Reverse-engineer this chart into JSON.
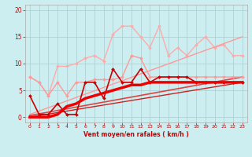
{
  "title": "",
  "xlabel": "Vent moyen/en rafales ( km/h )",
  "ylabel": "",
  "bg_color": "#cceef0",
  "grid_color": "#aacccc",
  "xlim": [
    -0.5,
    23.5
  ],
  "ylim": [
    -1,
    21
  ],
  "yticks": [
    0,
    5,
    10,
    15,
    20
  ],
  "xticks": [
    0,
    1,
    2,
    3,
    4,
    5,
    6,
    7,
    8,
    9,
    10,
    11,
    12,
    13,
    14,
    15,
    16,
    17,
    18,
    19,
    20,
    21,
    22,
    23
  ],
  "lines": [
    {
      "x": [
        0,
        1,
        2,
        3,
        4,
        5,
        6,
        7,
        8,
        9,
        10,
        11,
        12,
        13,
        14,
        15,
        16,
        17,
        18,
        19,
        20,
        21,
        22,
        23
      ],
      "y": [
        7.5,
        6.5,
        4.0,
        9.5,
        9.5,
        10.0,
        11.0,
        11.5,
        10.5,
        15.5,
        17.0,
        17.0,
        15.0,
        13.0,
        17.0,
        11.5,
        13.0,
        11.5,
        13.5,
        15.0,
        13.0,
        13.5,
        11.5,
        11.5
      ],
      "color": "#ffaaaa",
      "lw": 1.0,
      "marker": "D",
      "ms": 2.0,
      "zorder": 2
    },
    {
      "x": [
        0,
        1,
        2,
        3,
        4,
        5,
        6,
        7,
        8,
        9,
        10,
        11,
        12,
        13,
        14,
        15,
        16,
        17,
        18,
        19,
        20,
        21,
        22,
        23
      ],
      "y": [
        7.5,
        6.5,
        4.0,
        6.5,
        4.0,
        6.5,
        6.5,
        7.0,
        7.0,
        7.0,
        7.5,
        11.5,
        11.0,
        7.5,
        7.5,
        7.5,
        7.5,
        7.5,
        7.5,
        7.5,
        7.5,
        7.5,
        7.5,
        7.5
      ],
      "color": "#ff9999",
      "lw": 1.0,
      "marker": "D",
      "ms": 2.0,
      "zorder": 3
    },
    {
      "x": [
        0,
        23
      ],
      "y": [
        0.5,
        15.0
      ],
      "color": "#ff9999",
      "lw": 1.0,
      "marker": null,
      "ms": 0,
      "zorder": 2
    },
    {
      "x": [
        0,
        1,
        2,
        3,
        4,
        5,
        6,
        7,
        8,
        9,
        10,
        11,
        12,
        13,
        14,
        15,
        16,
        17,
        18,
        19,
        20,
        21,
        22,
        23
      ],
      "y": [
        4.0,
        0.5,
        0.5,
        2.5,
        0.5,
        0.5,
        6.5,
        6.5,
        3.5,
        9.0,
        6.5,
        6.5,
        9.0,
        6.5,
        7.5,
        7.5,
        7.5,
        7.5,
        6.5,
        6.5,
        6.5,
        6.5,
        6.5,
        6.5
      ],
      "color": "#cc0000",
      "lw": 1.2,
      "marker": "D",
      "ms": 2.0,
      "zorder": 4
    },
    {
      "x": [
        0,
        1,
        2,
        3,
        4,
        5,
        6,
        7,
        8,
        9,
        10,
        11,
        12,
        13,
        14,
        15,
        16,
        17,
        18,
        19,
        20,
        21,
        22,
        23
      ],
      "y": [
        0.0,
        0.0,
        0.0,
        0.5,
        2.0,
        2.5,
        3.5,
        4.0,
        4.5,
        5.0,
        5.5,
        6.0,
        6.0,
        6.5,
        6.5,
        6.5,
        6.5,
        6.5,
        6.5,
        6.5,
        6.5,
        6.5,
        6.5,
        6.5
      ],
      "color": "#ee0000",
      "lw": 2.5,
      "marker": null,
      "ms": 0,
      "zorder": 5
    },
    {
      "x": [
        0,
        23
      ],
      "y": [
        0.3,
        7.5
      ],
      "color": "#dd4444",
      "lw": 1.2,
      "marker": null,
      "ms": 0,
      "zorder": 2
    },
    {
      "x": [
        0,
        23
      ],
      "y": [
        0.0,
        6.5
      ],
      "color": "#cc2222",
      "lw": 1.0,
      "marker": null,
      "ms": 0,
      "zorder": 2
    }
  ]
}
